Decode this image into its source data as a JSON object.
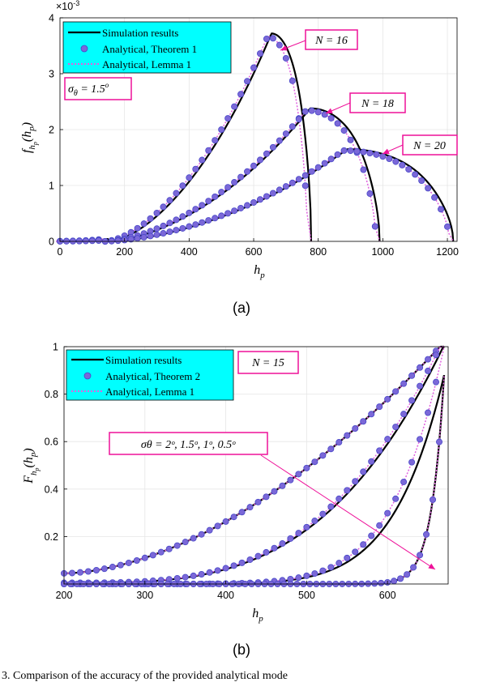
{
  "chart_data": [
    {
      "type": "line",
      "subfigure_label": "(a)",
      "xlabel": "h_p",
      "ylabel": "f_{h_p}(h_p)",
      "y_multiplier": "×10^-3",
      "xlim": [
        0,
        1230
      ],
      "ylim": [
        0,
        4
      ],
      "xticks": [
        0,
        200,
        400,
        600,
        800,
        1000,
        1200
      ],
      "yticks": [
        0,
        1,
        2,
        3,
        4
      ],
      "grid": true,
      "legend_position": "top-left",
      "legend": [
        "Simulation results",
        "Analytical, Theorem 1",
        "Analytical, Lemma 1"
      ],
      "annotations": [
        "σθ = 1.5°",
        "N = 16",
        "N = 18",
        "N = 20"
      ],
      "series": [
        {
          "name": "N = 16",
          "peak_x": 655,
          "peak_y": 3.72,
          "end_x": 778
        },
        {
          "name": "N = 18",
          "peak_x": 775,
          "peak_y": 2.38,
          "end_x": 990
        },
        {
          "name": "N = 20",
          "peak_x": 890,
          "peak_y": 1.65,
          "end_x": 1218
        }
      ]
    },
    {
      "type": "line",
      "subfigure_label": "(b)",
      "xlabel": "h_p",
      "ylabel": "F_{h_p}(h_p)",
      "xlim": [
        200,
        675
      ],
      "ylim": [
        0,
        1
      ],
      "xticks": [
        200,
        300,
        400,
        500,
        600
      ],
      "yticks": [
        0.2,
        0.4,
        0.6,
        0.8,
        1
      ],
      "grid": true,
      "legend_position": "top-left",
      "legend": [
        "Simulation results",
        "Analytical, Theorem 2",
        "Analytical, Lemma 1"
      ],
      "annotations": [
        "N = 15",
        "σθ = 2°, 1.5°, 1°, 0.5°"
      ],
      "series": [
        {
          "name": "σθ = 2°",
          "start_y": 0.045
        },
        {
          "name": "σθ = 1.5°",
          "start_y": 0.005
        },
        {
          "name": "σθ = 1°",
          "start_y": 0.0
        },
        {
          "name": "σθ = 0.5°",
          "start_y": 0.0
        }
      ]
    }
  ],
  "text": {
    "a_xlabel": "h",
    "a_xlabel_sub": "p",
    "b_xlabel": "h",
    "b_xlabel_sub": "p",
    "a_sub": "(a)",
    "b_sub": "(b)",
    "a_mult_base": "×10",
    "a_mult_exp": "-3",
    "a_leg1": "Simulation results",
    "a_leg2": "Analytical, Theorem 1",
    "a_leg3": "Analytical, Lemma 1",
    "b_leg1": "Simulation results",
    "b_leg2": "Analytical, Theorem 2",
    "b_leg3": "Analytical, Lemma 1",
    "a_sigma": "σ",
    "a_sigma_sub": "θ",
    "a_sigma_val": " = 1.5",
    "a_sigma_deg": "o",
    "n16": "N = 16",
    "n18": "N = 18",
    "n20": "N = 20",
    "n15": "N = 15",
    "b_sigma_list": "σθ = 2ᵒ, 1.5ᵒ, 1ᵒ, 0.5ᵒ",
    "caption": "3.   Comparison of the accuracy of the provided analytical mode"
  },
  "colors": {
    "simulation": "#000000",
    "theorem": "#7b68d8",
    "theorem_edge": "#4848c8",
    "lemma": "#e060e0",
    "legend_bg": "#00ffff",
    "annotation_border": "#ee1199",
    "arrow": "#ee1199",
    "grid": "#e6e6e6"
  }
}
